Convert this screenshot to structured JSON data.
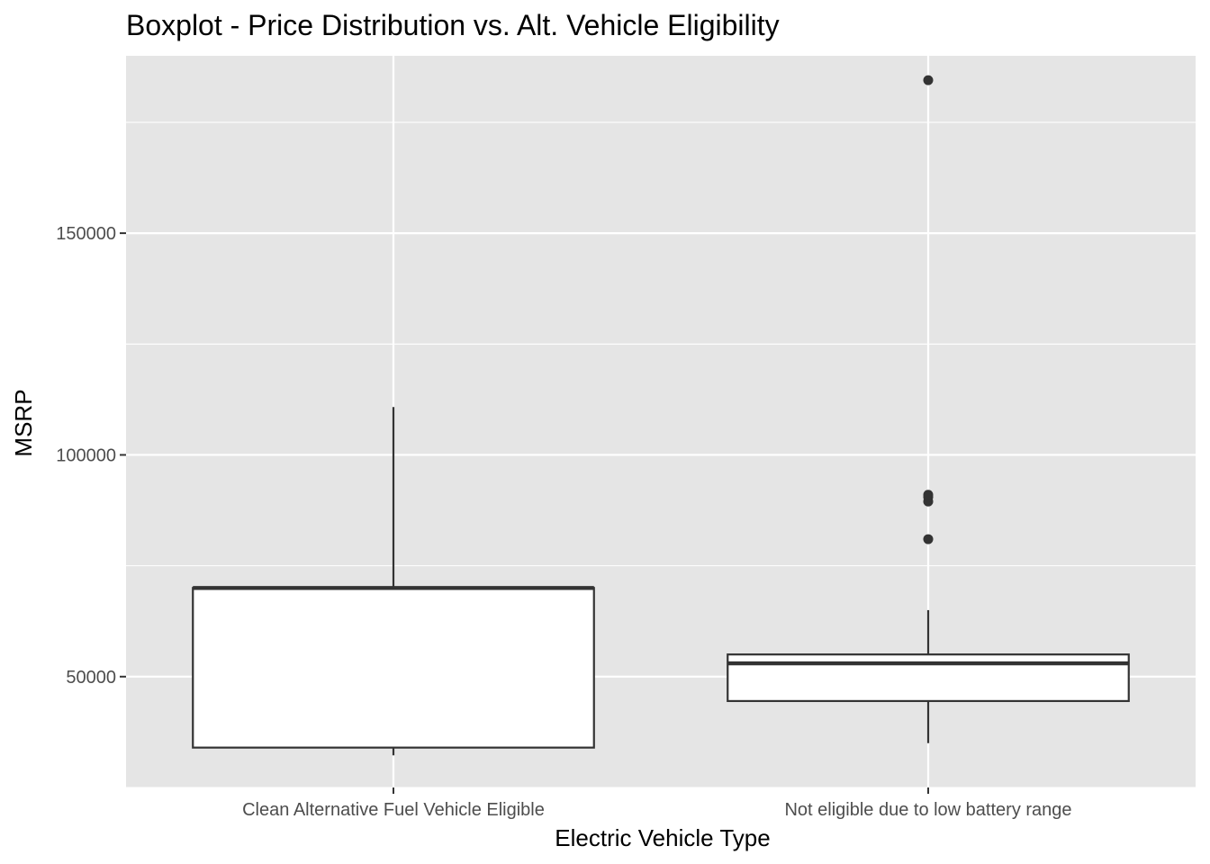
{
  "chart_data": {
    "type": "boxplot",
    "title": "Boxplot - Price Distribution vs. Alt. Vehicle Eligibility",
    "xlabel": "Electric Vehicle Type",
    "ylabel": "MSRP",
    "ylim": [
      25000,
      190000
    ],
    "yticks": [
      50000,
      100000,
      150000
    ],
    "ytick_labels": [
      "50000",
      "100000",
      "150000"
    ],
    "grid": true,
    "legend": "none",
    "categories": [
      "Clean Alternative Fuel Vehicle Eligible",
      "Not eligible due to low battery range"
    ],
    "boxes": [
      {
        "category": "Clean Alternative Fuel Vehicle Eligible",
        "min": 32250,
        "q1": 34000,
        "median": 70000,
        "q3": 70000,
        "max": 110800,
        "outliers": []
      },
      {
        "category": "Not eligible due to low battery range",
        "min": 35000,
        "q1": 44500,
        "median": 53000,
        "q3": 55000,
        "max": 65000,
        "outliers": [
          81000,
          89500,
          90500,
          91000,
          184500
        ]
      }
    ]
  },
  "colors": {
    "panel_background": "#e5e5e5",
    "grid": "#ffffff",
    "box_fill": "#ffffff",
    "box_stroke": "#333333",
    "outlier": "#333333"
  }
}
